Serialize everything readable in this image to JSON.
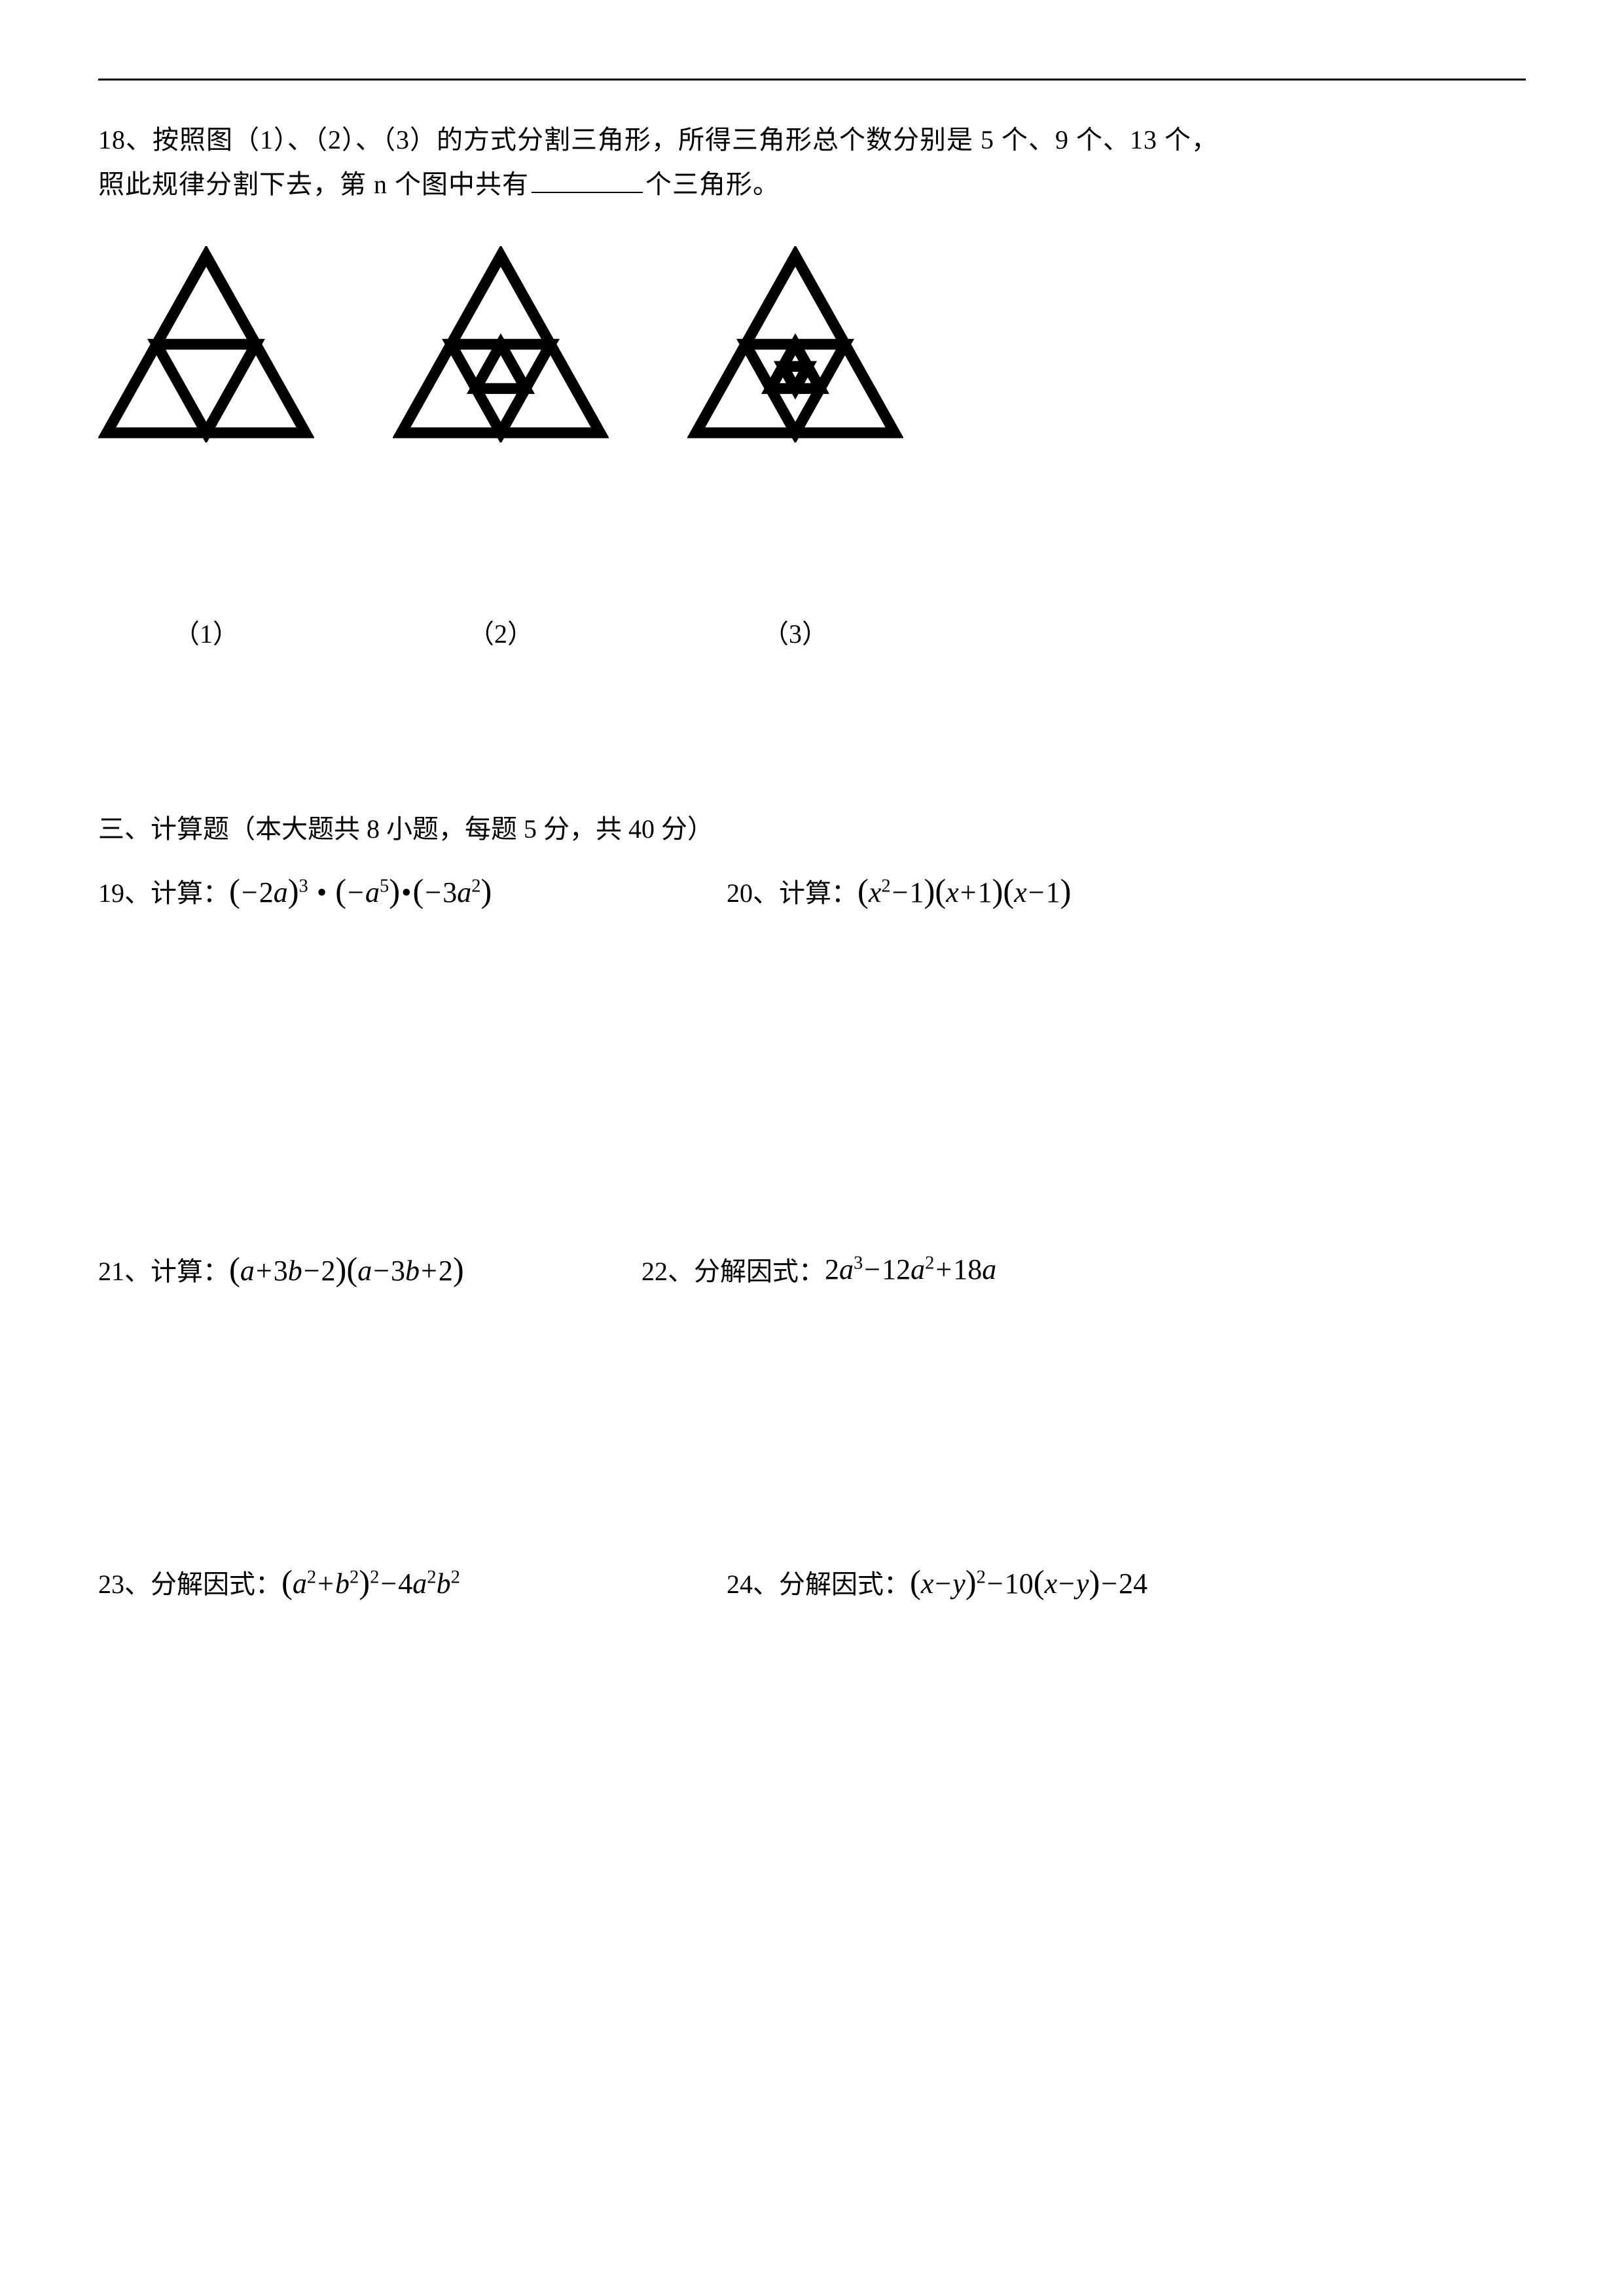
{
  "q18": {
    "number": "18、",
    "text_a": "按照图（1）、（2）、（3）的方式分割三角形，所得三角形总个数分别是 5 个、9 个、13 个，",
    "text_b_pre": "照此规律分割下去，第 n 个图中共有",
    "text_b_post": "个三角形。",
    "captions": [
      "（1）",
      "（2）",
      "（3）"
    ]
  },
  "section3": {
    "title": "三、计算题（本大题共 8 小题，每题 5 分，共 40 分）"
  },
  "q19": {
    "num": "19、",
    "label": "计算："
  },
  "q20": {
    "num": "20、",
    "label": "计算："
  },
  "q21": {
    "num": "21、",
    "label": "计算："
  },
  "q22": {
    "num": "22、",
    "label": "分解因式："
  },
  "q23": {
    "num": "23、",
    "label": "分解因式："
  },
  "q24": {
    "num": "24、",
    "label": "分解因式："
  },
  "figures": {
    "stroke": "#000000",
    "stroke_width": 10,
    "fill": "none",
    "size": 330,
    "levels": [
      1,
      2,
      3
    ]
  },
  "layout": {
    "fig_gap": 120,
    "cap_positions": [
      165,
      620,
      1085
    ]
  }
}
